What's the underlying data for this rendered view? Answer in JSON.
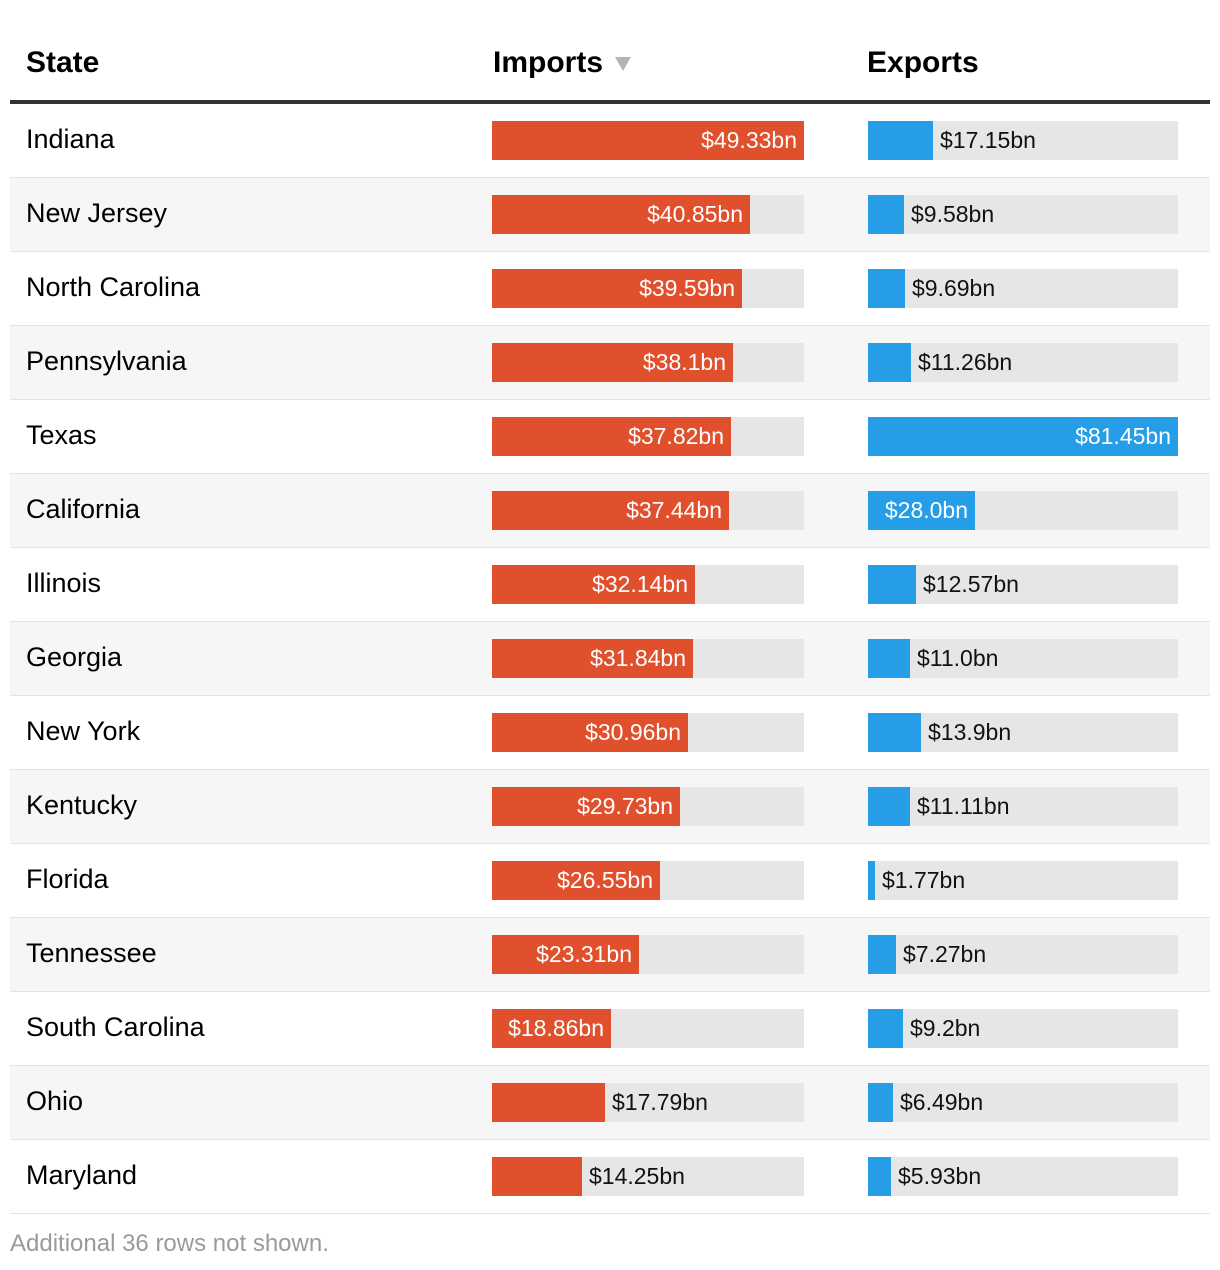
{
  "chart_data": {
    "type": "table",
    "columns": {
      "state": "State",
      "imports": "Imports",
      "exports": "Exports"
    },
    "sort_column": "imports",
    "sort_direction": "descending",
    "imports_max": 49.33,
    "exports_max": 81.45,
    "rows": [
      {
        "state": "Indiana",
        "imports": 49.33,
        "imports_label": "$49.33bn",
        "exports": 17.15,
        "exports_label": "$17.15bn"
      },
      {
        "state": "New Jersey",
        "imports": 40.85,
        "imports_label": "$40.85bn",
        "exports": 9.58,
        "exports_label": "$9.58bn"
      },
      {
        "state": "North Carolina",
        "imports": 39.59,
        "imports_label": "$39.59bn",
        "exports": 9.69,
        "exports_label": "$9.69bn"
      },
      {
        "state": "Pennsylvania",
        "imports": 38.1,
        "imports_label": "$38.1bn",
        "exports": 11.26,
        "exports_label": "$11.26bn"
      },
      {
        "state": "Texas",
        "imports": 37.82,
        "imports_label": "$37.82bn",
        "exports": 81.45,
        "exports_label": "$81.45bn"
      },
      {
        "state": "California",
        "imports": 37.44,
        "imports_label": "$37.44bn",
        "exports": 28.0,
        "exports_label": "$28.0bn"
      },
      {
        "state": "Illinois",
        "imports": 32.14,
        "imports_label": "$32.14bn",
        "exports": 12.57,
        "exports_label": "$12.57bn"
      },
      {
        "state": "Georgia",
        "imports": 31.84,
        "imports_label": "$31.84bn",
        "exports": 11.0,
        "exports_label": "$11.0bn"
      },
      {
        "state": "New York",
        "imports": 30.96,
        "imports_label": "$30.96bn",
        "exports": 13.9,
        "exports_label": "$13.9bn"
      },
      {
        "state": "Kentucky",
        "imports": 29.73,
        "imports_label": "$29.73bn",
        "exports": 11.11,
        "exports_label": "$11.11bn"
      },
      {
        "state": "Florida",
        "imports": 26.55,
        "imports_label": "$26.55bn",
        "exports": 1.77,
        "exports_label": "$1.77bn"
      },
      {
        "state": "Tennessee",
        "imports": 23.31,
        "imports_label": "$23.31bn",
        "exports": 7.27,
        "exports_label": "$7.27bn"
      },
      {
        "state": "South Carolina",
        "imports": 18.86,
        "imports_label": "$18.86bn",
        "exports": 9.2,
        "exports_label": "$9.2bn"
      },
      {
        "state": "Ohio",
        "imports": 17.79,
        "imports_label": "$17.79bn",
        "exports": 6.49,
        "exports_label": "$6.49bn"
      },
      {
        "state": "Maryland",
        "imports": 14.25,
        "imports_label": "$14.25bn",
        "exports": 5.93,
        "exports_label": "$5.93bn"
      }
    ]
  },
  "footer": {
    "note": "Additional 36 rows not shown."
  },
  "colors": {
    "imports": "#e0502d",
    "exports": "#259de7",
    "track": "#e6e6e6"
  }
}
